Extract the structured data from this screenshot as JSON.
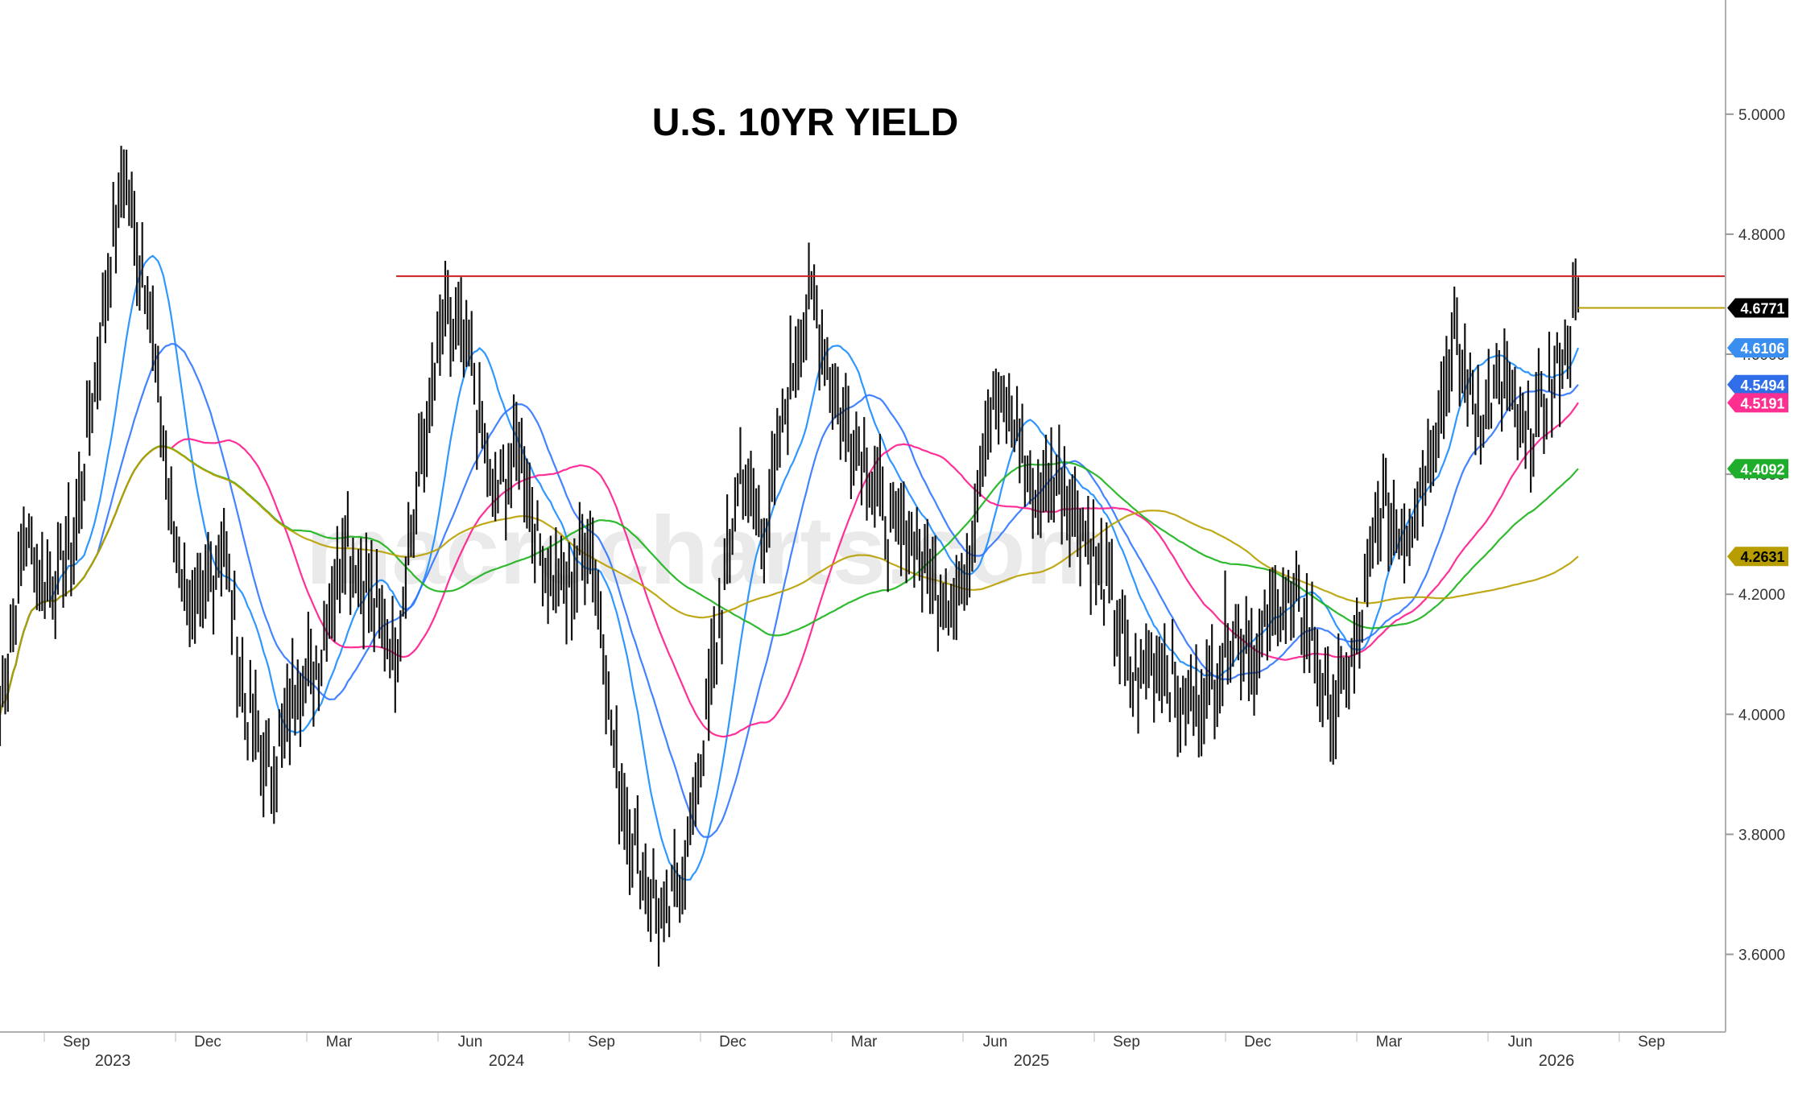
{
  "chart_data": {
    "type": "line",
    "title": "U.S. 10YR YIELD",
    "watermark": "macrocharts.com",
    "ylim": [
      3.48,
      5.15
    ],
    "yticks": [
      "5.0000",
      "4.8000",
      "4.6000",
      "4.4000",
      "4.2000",
      "4.0000",
      "3.8000",
      "3.6000"
    ],
    "x_months": [
      {
        "label": "Sep",
        "year": "2023"
      },
      {
        "label": "Dec",
        "year": ""
      },
      {
        "label": "Mar",
        "year": ""
      },
      {
        "label": "Jun",
        "year": "2024"
      },
      {
        "label": "Sep",
        "year": ""
      },
      {
        "label": "Dec",
        "year": ""
      },
      {
        "label": "Mar",
        "year": ""
      },
      {
        "label": "Jun",
        "year": "2025"
      },
      {
        "label": "Sep",
        "year": ""
      },
      {
        "label": "Dec",
        "year": ""
      },
      {
        "label": "Mar",
        "year": ""
      },
      {
        "label": "Jun",
        "year": "2026"
      },
      {
        "label": "Sep",
        "year": ""
      }
    ],
    "resistance_level": 4.73,
    "current_level": 4.6771,
    "price_path": [
      4.0,
      4.3,
      4.2,
      4.3,
      4.6,
      4.9,
      4.7,
      4.3,
      4.15,
      4.3,
      4.0,
      3.9,
      4.05,
      4.1,
      4.3,
      4.2,
      4.1,
      4.4,
      4.65,
      4.6,
      4.35,
      4.45,
      4.25,
      4.2,
      4.3,
      3.9,
      3.75,
      3.65,
      3.8,
      4.1,
      4.4,
      4.3,
      4.55,
      4.7,
      4.5,
      4.45,
      4.3,
      4.3,
      4.2,
      4.2,
      4.5,
      4.5,
      4.35,
      4.4,
      4.3,
      4.2,
      4.05,
      4.1,
      4.0,
      4.05,
      4.15,
      4.1,
      4.2,
      4.15,
      4.0,
      4.1,
      4.35,
      4.3,
      4.45,
      4.62,
      4.5,
      4.55,
      4.45,
      4.55,
      4.68
    ],
    "series": [
      {
        "name": "",
        "color": "#1a8cff",
        "last": "4.6106",
        "window": 2
      },
      {
        "name": "",
        "color": "#2f76ff",
        "last": "4.5494",
        "window": 4
      },
      {
        "name": "",
        "color": "#ff1a8c",
        "last": "4.5191",
        "window": 7
      },
      {
        "name": "",
        "color": "#19b319",
        "last": "4.4092",
        "window": 12
      },
      {
        "name": "",
        "color": "#b8a000",
        "last": "4.2631",
        "window": 18
      }
    ],
    "badges": [
      {
        "text": "4.6771",
        "value": 4.6771,
        "bg": "#000000",
        "fg": "#ffffff"
      },
      {
        "text": "4.6106",
        "value": 4.6106,
        "bg": "#3a8ef0",
        "fg": "#ffffff"
      },
      {
        "text": "4.5494",
        "value": 4.5494,
        "bg": "#2f6ee8",
        "fg": "#ffffff"
      },
      {
        "text": "4.5191",
        "value": 4.5191,
        "bg": "#ff2f92",
        "fg": "#ffffff"
      },
      {
        "text": "4.4092",
        "value": 4.4092,
        "bg": "#1fae2b",
        "fg": "#ffffff"
      },
      {
        "text": "4.2631",
        "value": 4.2631,
        "bg": "#b79d00",
        "fg": "#000000"
      }
    ]
  }
}
